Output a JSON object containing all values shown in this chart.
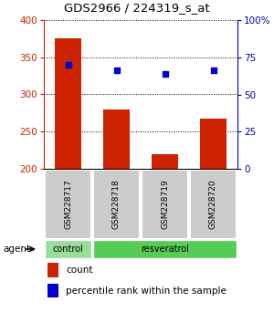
{
  "title": "GDS2966 / 224319_s_at",
  "samples": [
    "GSM228717",
    "GSM228718",
    "GSM228719",
    "GSM228720"
  ],
  "counts": [
    375,
    280,
    220,
    268
  ],
  "percentile_ranks": [
    70,
    66,
    64,
    66
  ],
  "ylim_left": [
    200,
    400
  ],
  "ylim_right": [
    0,
    100
  ],
  "yticks_left": [
    200,
    250,
    300,
    350,
    400
  ],
  "yticks_right": [
    0,
    25,
    50,
    75,
    100
  ],
  "bar_color": "#cc2200",
  "dot_color": "#0000cc",
  "bar_width": 0.55,
  "control_color": "#99dd99",
  "resveratrol_color": "#55cc55",
  "sample_box_color": "#cccccc",
  "legend_count_color": "#cc2200",
  "legend_pct_color": "#0000cc",
  "left_axis_color": "#cc2200",
  "right_axis_color": "#0000bb"
}
